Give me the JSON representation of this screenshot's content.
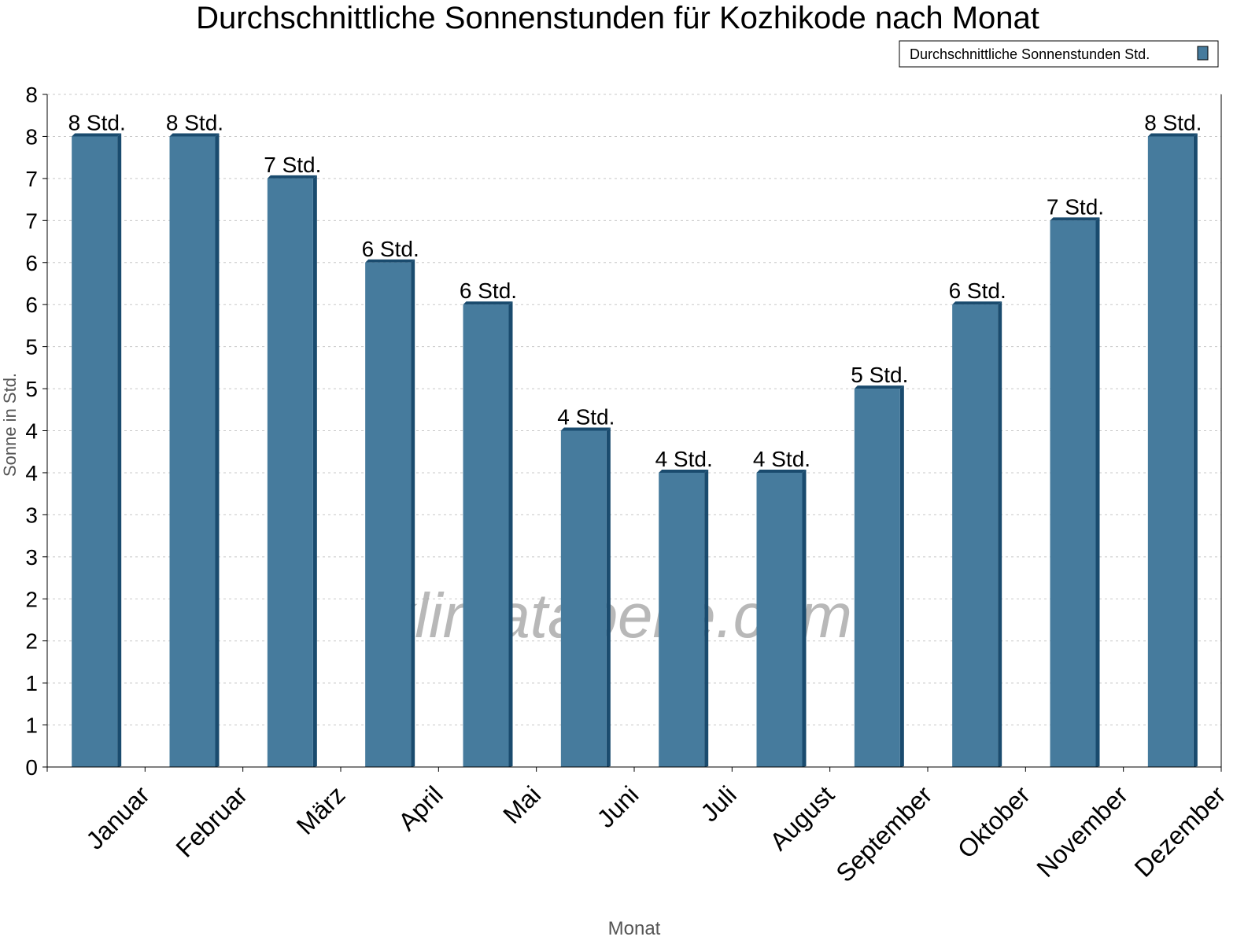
{
  "chart_data": {
    "type": "bar",
    "title": "Durchschnittliche Sonnenstunden für Kozhikode nach Monat",
    "xlabel": "Monat",
    "ylabel": "Sonne in Std.",
    "ylim": [
      0,
      8
    ],
    "ytick_values": [
      0,
      0.5,
      1,
      1.5,
      2,
      2.5,
      3,
      3.5,
      4,
      4.5,
      5,
      5.5,
      6,
      6.5,
      7,
      7.5,
      8
    ],
    "ytick_labels": [
      "0",
      "1",
      "1",
      "2",
      "2",
      "3",
      "3",
      "4",
      "4",
      "5",
      "5",
      "6",
      "6",
      "7",
      "7",
      "8",
      "8"
    ],
    "grid": true,
    "legend_position": "top-right",
    "categories": [
      "Januar",
      "Februar",
      "März",
      "April",
      "Mai",
      "Juni",
      "Juli",
      "August",
      "September",
      "Oktober",
      "November",
      "Dezember"
    ],
    "series": [
      {
        "name": "Durchschnittliche Sonnenstunden Std.",
        "values": [
          7.5,
          7.5,
          7.0,
          6.0,
          5.5,
          4.0,
          3.5,
          3.5,
          4.5,
          5.5,
          6.5,
          7.5
        ],
        "data_labels": [
          "8 Std.",
          "8 Std.",
          "7 Std.",
          "6 Std.",
          "6 Std.",
          "4 Std.",
          "4 Std.",
          "4 Std.",
          "5 Std.",
          "6 Std.",
          "7 Std.",
          "8 Std."
        ],
        "color": "#467b9d",
        "side_color": "#1a4b6e"
      }
    ],
    "watermark": "klimatabelle.com"
  }
}
